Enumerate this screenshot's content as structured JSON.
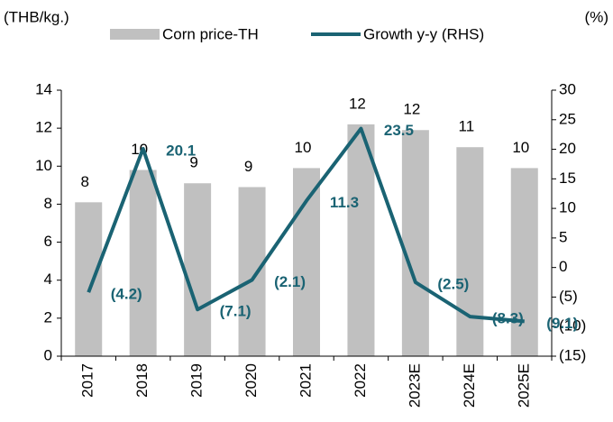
{
  "chart_data": {
    "type": "bar_line",
    "y_label": "(THB/kg.)",
    "y2_label": "(%)",
    "categories": [
      "2017",
      "2018",
      "2019",
      "2020",
      "2021",
      "2022",
      "2023E",
      "2024E",
      "2025E"
    ],
    "series": [
      {
        "name": "Corn price-TH",
        "type": "bar",
        "color": "#c0c0c0",
        "values": [
          8.1,
          9.8,
          9.1,
          8.9,
          9.9,
          12.2,
          11.9,
          11.0,
          9.9
        ],
        "value_labels": [
          "8",
          "10",
          "9",
          "9",
          "10",
          "12",
          "12",
          "11",
          "10"
        ]
      },
      {
        "name": "Growth y-y (RHS)",
        "type": "line",
        "axis": "y2",
        "color": "#1a6373",
        "values": [
          -4.2,
          20.1,
          -7.1,
          -2.1,
          11.3,
          23.5,
          -2.5,
          -8.3,
          -9.1
        ],
        "value_labels": [
          "(4.2)",
          "20.1",
          "(7.1)",
          "(2.1)",
          "11.3",
          "23.5",
          "(2.5)",
          "(8.3)",
          "(9.1)"
        ]
      }
    ],
    "ylim": [
      0,
      14
    ],
    "yticks": [
      0,
      2,
      4,
      6,
      8,
      10,
      12,
      14
    ],
    "y2lim": [
      -15,
      30
    ],
    "y2ticks": [
      {
        "value": -15,
        "label": "(15)"
      },
      {
        "value": -10,
        "label": "(10)"
      },
      {
        "value": -5,
        "label": "(5)"
      },
      0,
      5,
      10,
      15,
      20,
      25,
      30
    ],
    "legend": "top"
  }
}
